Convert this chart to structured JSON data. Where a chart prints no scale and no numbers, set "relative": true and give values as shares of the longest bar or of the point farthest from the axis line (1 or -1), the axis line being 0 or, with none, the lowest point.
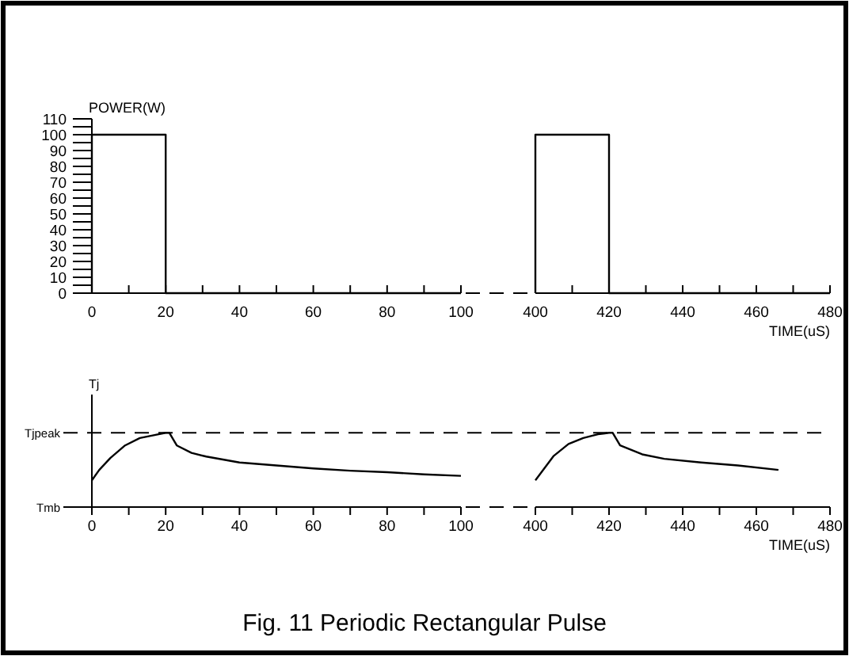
{
  "chart_data": [
    {
      "type": "line",
      "ylabel": "POWER(W)",
      "xlim": [
        0,
        100
      ],
      "ylim": [
        0,
        110
      ],
      "xticks": [
        0,
        {
          "value": 10,
          "label": null
        },
        20,
        {
          "value": 30,
          "label": null
        },
        40,
        {
          "value": 50,
          "label": null
        },
        60,
        {
          "value": 70,
          "label": null
        },
        80,
        {
          "value": 90,
          "label": null
        },
        100
      ],
      "yticks": [
        0,
        {
          "value": 5,
          "label": null
        },
        10,
        {
          "value": 15,
          "label": null
        },
        20,
        {
          "value": 25,
          "label": null
        },
        30,
        {
          "value": 35,
          "label": null
        },
        40,
        {
          "value": 45,
          "label": null
        },
        50,
        {
          "value": 55,
          "label": null
        },
        60,
        {
          "value": 65,
          "label": null
        },
        70,
        {
          "value": 75,
          "label": null
        },
        80,
        {
          "value": 85,
          "label": null
        },
        90,
        {
          "value": 95,
          "label": null
        },
        100,
        {
          "value": 105,
          "label": null
        },
        110
      ],
      "series": [
        {
          "color": "#000000",
          "x": [
            0,
            0,
            20,
            20,
            100
          ],
          "values": [
            0,
            100,
            100,
            0,
            0
          ]
        }
      ]
    },
    {
      "type": "line",
      "xlabel": "TIME(uS)",
      "xlim": [
        400,
        480
      ],
      "ylim": [
        0,
        110
      ],
      "tick_labels": "x",
      "xticks": [
        400,
        {
          "value": 410,
          "label": null
        },
        420,
        {
          "value": 430,
          "label": null
        },
        440,
        {
          "value": 450,
          "label": null
        },
        460,
        {
          "value": 470,
          "label": null
        },
        480
      ],
      "series": [
        {
          "color": "#000000",
          "x": [
            400,
            400,
            420,
            420,
            480
          ],
          "values": [
            0,
            100,
            100,
            0,
            0
          ]
        }
      ]
    },
    {
      "type": "line",
      "ylabel": "Tj",
      "xlim": [
        0,
        100
      ],
      "relative": true,
      "xticks": [
        0,
        {
          "value": 10,
          "label": null
        },
        20,
        {
          "value": 30,
          "label": null
        },
        40,
        {
          "value": 50,
          "label": null
        },
        60,
        {
          "value": 70,
          "label": null
        },
        80,
        {
          "value": 90,
          "label": null
        },
        100
      ],
      "series": [
        {
          "color": "#000000",
          "x": [
            0,
            2,
            5,
            9,
            13,
            17,
            20,
            21,
            23,
            27,
            31,
            40,
            50,
            60,
            70,
            80,
            90,
            100
          ],
          "values": [
            0.36,
            0.5,
            0.66,
            0.83,
            0.93,
            0.97,
            1.0,
            1.0,
            0.83,
            0.73,
            0.68,
            0.6,
            0.56,
            0.52,
            0.49,
            0.47,
            0.44,
            0.42
          ]
        }
      ],
      "ref_lines": [
        {
          "axis": "y",
          "value": 1,
          "label": "Tjpeak",
          "color": "#000000",
          "line_style": "dashed"
        }
      ],
      "annotations": [
        "Tmb",
        "Fig. 11  Periodic Rectangular Pulse"
      ]
    },
    {
      "type": "line",
      "xlabel": "TIME(uS)",
      "xlim": [
        400,
        480
      ],
      "relative": true,
      "tick_labels": "x",
      "xticks": [
        400,
        {
          "value": 410,
          "label": null
        },
        420,
        {
          "value": 430,
          "label": null
        },
        440,
        {
          "value": 450,
          "label": null
        },
        460,
        {
          "value": 470,
          "label": null
        },
        480
      ],
      "series": [
        {
          "color": "#000000",
          "x": [
            400,
            405,
            409,
            413,
            417,
            420,
            421,
            423,
            429,
            435,
            445,
            455,
            466
          ],
          "values": [
            0.36,
            0.69,
            0.85,
            0.93,
            0.98,
            1.0,
            1.0,
            0.83,
            0.71,
            0.65,
            0.6,
            0.56,
            0.5
          ]
        }
      ],
      "ref_lines": [
        {
          "axis": "y",
          "value": 1,
          "color": "#000000",
          "line_style": "dashed"
        }
      ]
    }
  ]
}
